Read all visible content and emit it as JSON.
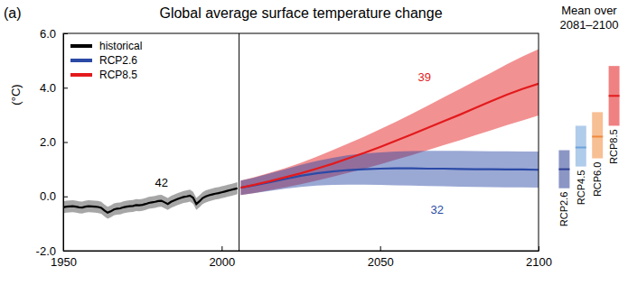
{
  "chart_data": [
    {
      "type": "line",
      "panel_label": "(a)",
      "title": "Global average surface temperature change",
      "y_label": "(°C)",
      "xlim": [
        1950,
        2100
      ],
      "ylim": [
        -2,
        6
      ],
      "xticks": [
        1950,
        2000,
        2050,
        2100
      ],
      "yticks": [
        {
          "value": -2,
          "label": "-2.0"
        },
        {
          "value": 0,
          "label": "0.0"
        },
        {
          "value": 2,
          "label": "2.0"
        },
        {
          "value": 4,
          "label": "4.0"
        },
        {
          "value": 6,
          "label": "6.0"
        }
      ],
      "grid": false,
      "legend": "upper left",
      "vline": 2005.5,
      "series": [
        {
          "name": "historical",
          "color": "#000000",
          "x": [
            1950,
            1951,
            1952,
            1953,
            1954,
            1955,
            1956,
            1957,
            1958,
            1959,
            1960,
            1961,
            1962,
            1963,
            1964,
            1965,
            1966,
            1967,
            1968,
            1969,
            1970,
            1971,
            1972,
            1973,
            1974,
            1975,
            1976,
            1977,
            1978,
            1979,
            1980,
            1981,
            1982,
            1983,
            1984,
            1985,
            1986,
            1987,
            1988,
            1989,
            1990,
            1991,
            1992,
            1993,
            1994,
            1995,
            1996,
            1997,
            1998,
            1999,
            2000,
            2001,
            2002,
            2003,
            2004,
            2005
          ],
          "values": [
            -0.4,
            -0.38,
            -0.37,
            -0.36,
            -0.38,
            -0.4,
            -0.41,
            -0.38,
            -0.36,
            -0.37,
            -0.38,
            -0.39,
            -0.42,
            -0.52,
            -0.6,
            -0.55,
            -0.48,
            -0.45,
            -0.44,
            -0.4,
            -0.38,
            -0.36,
            -0.35,
            -0.32,
            -0.33,
            -0.31,
            -0.28,
            -0.24,
            -0.22,
            -0.2,
            -0.17,
            -0.16,
            -0.22,
            -0.28,
            -0.2,
            -0.15,
            -0.1,
            -0.06,
            -0.02,
            0.0,
            0.03,
            -0.05,
            -0.28,
            -0.18,
            -0.06,
            0.0,
            0.04,
            0.07,
            0.1,
            0.12,
            0.15,
            0.18,
            0.21,
            0.24,
            0.27,
            0.3
          ],
          "low": [
            -0.62,
            -0.6,
            -0.59,
            -0.58,
            -0.6,
            -0.62,
            -0.63,
            -0.6,
            -0.58,
            -0.59,
            -0.6,
            -0.61,
            -0.64,
            -0.74,
            -0.82,
            -0.77,
            -0.7,
            -0.67,
            -0.66,
            -0.62,
            -0.6,
            -0.58,
            -0.57,
            -0.54,
            -0.55,
            -0.53,
            -0.5,
            -0.46,
            -0.44,
            -0.42,
            -0.39,
            -0.38,
            -0.44,
            -0.5,
            -0.42,
            -0.37,
            -0.32,
            -0.28,
            -0.24,
            -0.22,
            -0.19,
            -0.27,
            -0.5,
            -0.4,
            -0.28,
            -0.22,
            -0.18,
            -0.15,
            -0.12,
            -0.1,
            -0.07,
            -0.04,
            -0.01,
            0.02,
            0.05,
            0.08
          ],
          "high": [
            -0.18,
            -0.16,
            -0.15,
            -0.14,
            -0.16,
            -0.18,
            -0.19,
            -0.16,
            -0.14,
            -0.15,
            -0.16,
            -0.17,
            -0.2,
            -0.3,
            -0.38,
            -0.33,
            -0.26,
            -0.23,
            -0.22,
            -0.18,
            -0.16,
            -0.14,
            -0.13,
            -0.1,
            -0.11,
            -0.09,
            -0.06,
            -0.02,
            0.0,
            0.02,
            0.05,
            0.06,
            0.0,
            -0.06,
            0.02,
            0.07,
            0.12,
            0.16,
            0.2,
            0.22,
            0.25,
            0.17,
            -0.06,
            0.04,
            0.16,
            0.22,
            0.26,
            0.29,
            0.32,
            0.34,
            0.37,
            0.4,
            0.43,
            0.46,
            0.49,
            0.52
          ]
        },
        {
          "name": "RCP2.6",
          "color": "#2b4aa6",
          "x": [
            2006,
            2010,
            2015,
            2020,
            2025,
            2030,
            2035,
            2040,
            2045,
            2050,
            2055,
            2060,
            2065,
            2070,
            2075,
            2080,
            2085,
            2090,
            2095,
            2100
          ],
          "values": [
            0.32,
            0.4,
            0.52,
            0.64,
            0.76,
            0.85,
            0.92,
            0.97,
            1.0,
            1.02,
            1.03,
            1.03,
            1.02,
            1.02,
            1.01,
            1.0,
            1.0,
            0.99,
            0.99,
            0.98
          ],
          "low": [
            0.05,
            0.12,
            0.2,
            0.28,
            0.35,
            0.4,
            0.42,
            0.43,
            0.43,
            0.42,
            0.41,
            0.4,
            0.38,
            0.37,
            0.36,
            0.35,
            0.34,
            0.33,
            0.33,
            0.32
          ],
          "high": [
            0.58,
            0.68,
            0.84,
            1.0,
            1.16,
            1.3,
            1.42,
            1.52,
            1.58,
            1.62,
            1.65,
            1.67,
            1.68,
            1.68,
            1.68,
            1.67,
            1.66,
            1.66,
            1.65,
            1.65
          ]
        },
        {
          "name": "RCP8.5",
          "color": "#e31a1c",
          "x": [
            2006,
            2010,
            2015,
            2020,
            2025,
            2030,
            2035,
            2040,
            2045,
            2050,
            2055,
            2060,
            2065,
            2070,
            2075,
            2080,
            2085,
            2090,
            2095,
            2100
          ],
          "values": [
            0.32,
            0.42,
            0.55,
            0.7,
            0.85,
            1.02,
            1.2,
            1.4,
            1.6,
            1.82,
            2.05,
            2.28,
            2.52,
            2.76,
            3.0,
            3.25,
            3.5,
            3.74,
            3.96,
            4.15
          ],
          "low": [
            0.05,
            0.12,
            0.22,
            0.33,
            0.45,
            0.58,
            0.72,
            0.87,
            1.02,
            1.18,
            1.35,
            1.52,
            1.7,
            1.88,
            2.06,
            2.25,
            2.43,
            2.62,
            2.8,
            2.98
          ],
          "high": [
            0.58,
            0.7,
            0.86,
            1.04,
            1.24,
            1.46,
            1.7,
            1.95,
            2.2,
            2.47,
            2.75,
            3.04,
            3.34,
            3.64,
            3.94,
            4.25,
            4.55,
            4.86,
            5.15,
            5.42
          ]
        }
      ],
      "annotations": [
        {
          "text": "42",
          "x": 1981,
          "y": 0.5,
          "color": "#000000"
        },
        {
          "text": "39",
          "x": 2064,
          "y": 4.4,
          "color": "#e31a1c"
        },
        {
          "text": "32",
          "x": 2068,
          "y": -0.5,
          "color": "#2b4aa6"
        }
      ]
    },
    {
      "type": "range_bar",
      "title": [
        "Mean over",
        "2081–2100"
      ],
      "categories": [
        "RCP2.6",
        "RCP4.5",
        "RCP6.0",
        "RCP8.5"
      ],
      "values": [
        1.0,
        1.8,
        2.2,
        3.7
      ],
      "low": [
        0.3,
        1.1,
        1.4,
        2.6
      ],
      "high": [
        1.7,
        2.6,
        3.1,
        4.8
      ],
      "colors": [
        "#2e3f95",
        "#6fa3db",
        "#f08a3c",
        "#e31a1c"
      ],
      "ylim": [
        -2,
        6
      ],
      "tick_labels": false
    }
  ]
}
